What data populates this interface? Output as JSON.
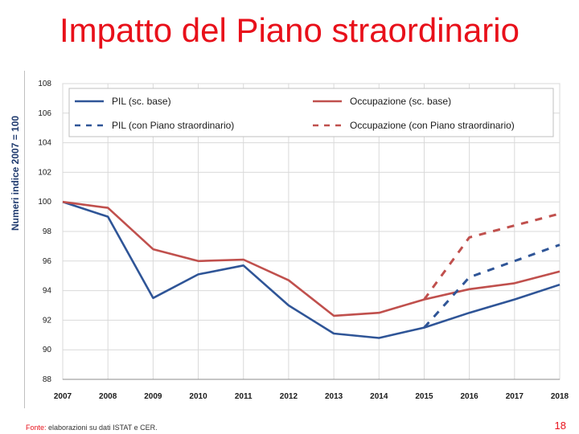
{
  "slide": {
    "title": "Impatto del Piano straordinario",
    "source_label": "Fonte:",
    "source_text": " elaborazioni su dati ISTAT e CER.",
    "page_number": "18"
  },
  "chart_data": {
    "type": "line",
    "title": "",
    "xlabel": "",
    "ylabel": "Numeri indice 2007 = 100",
    "x": [
      2007,
      2008,
      2009,
      2010,
      2011,
      2012,
      2013,
      2014,
      2015,
      2016,
      2017,
      2018
    ],
    "ylim": [
      88,
      108
    ],
    "yticks": [
      88,
      90,
      92,
      94,
      96,
      98,
      100,
      102,
      104,
      106,
      108
    ],
    "grid": true,
    "legend_position": "top",
    "series": [
      {
        "name": "PIL (sc. base)",
        "color": "#2f5597",
        "style": "solid",
        "x": [
          2007,
          2008,
          2009,
          2010,
          2011,
          2012,
          2013,
          2014,
          2015,
          2016,
          2017,
          2018
        ],
        "values": [
          100,
          99,
          93.5,
          95.1,
          95.7,
          93,
          91.1,
          90.8,
          91.5,
          92.5,
          93.4,
          94.4
        ]
      },
      {
        "name": "Occupazione (sc. base)",
        "color": "#c0504d",
        "style": "solid",
        "x": [
          2007,
          2008,
          2009,
          2010,
          2011,
          2012,
          2013,
          2014,
          2015,
          2016,
          2017,
          2018
        ],
        "values": [
          100,
          99.6,
          96.8,
          96,
          96.1,
          94.7,
          92.3,
          92.5,
          93.4,
          94.1,
          94.5,
          95.3
        ]
      },
      {
        "name": "PIL (con Piano straordinario)",
        "color": "#2f5597",
        "style": "dashed",
        "x": [
          2015,
          2016,
          2017,
          2018
        ],
        "values": [
          91.5,
          94.9,
          96,
          97.1
        ]
      },
      {
        "name": "Occupazione (con Piano straordinario)",
        "color": "#c0504d",
        "style": "dashed",
        "x": [
          2015,
          2016,
          2017,
          2018
        ],
        "values": [
          93.4,
          97.6,
          98.4,
          99.2
        ]
      }
    ]
  }
}
